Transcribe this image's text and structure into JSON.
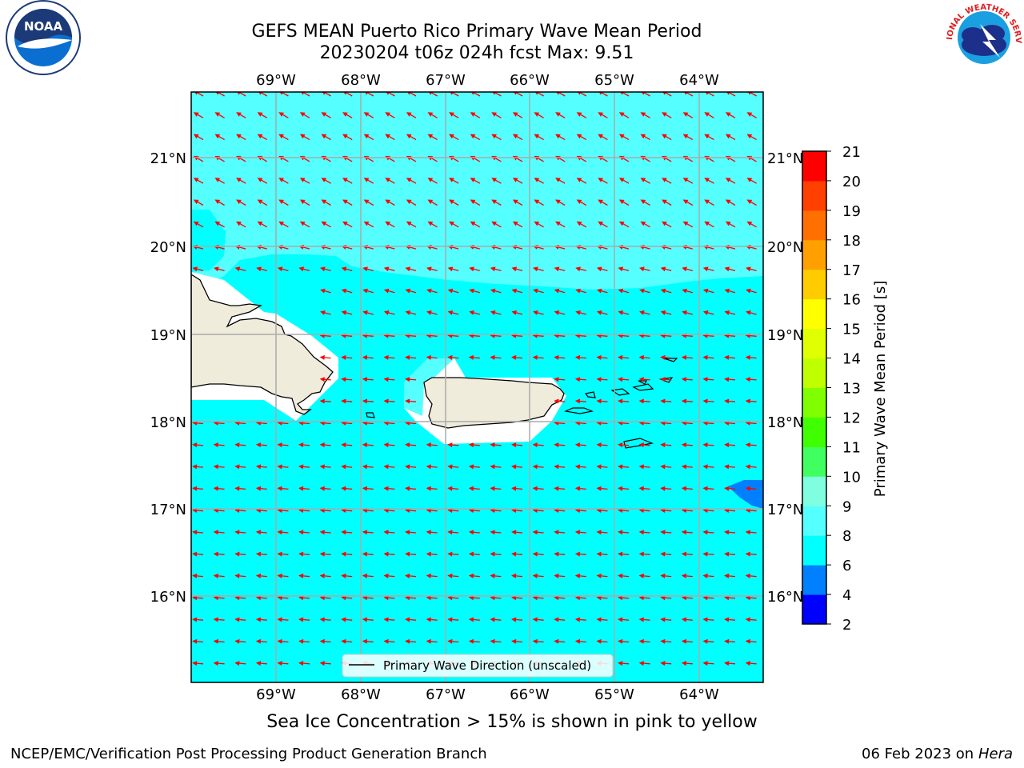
{
  "header": {
    "title_line1": "GEFS MEAN Puerto Rico Primary Wave Mean Period",
    "title_line2": "20230204 t06z 024h fcst   Max: 9.51"
  },
  "logos": {
    "left": {
      "name": "noaa-logo",
      "text": "NOAA",
      "ring_text": "NATIONAL OCEANIC AND ATMOSPHERIC ADMINISTRATION · U.S. DEPARTMENT OF COMMERCE"
    },
    "right": {
      "name": "nws-logo",
      "ring_text": "NATIONAL WEATHER SERVICE"
    }
  },
  "map": {
    "lon_labels": [
      "69°W",
      "68°W",
      "67°W",
      "66°W",
      "65°W",
      "64°W"
    ],
    "lat_labels": [
      "21°N",
      "20°N",
      "19°N",
      "18°N",
      "17°N",
      "16°N"
    ],
    "legend_label": "Primary Wave Direction (unscaled)",
    "arrow_color": "#ff0000",
    "background_fill": "#00ffff",
    "north_fill": "#55ffff",
    "land_fill": "#f0ecdc",
    "low_period_fill": "#0080ff"
  },
  "colorbar": {
    "label": "Primary Wave Mean Period [s]",
    "ticks": [
      "2",
      "4",
      "6",
      "8",
      "9",
      "10",
      "11",
      "12",
      "13",
      "14",
      "15",
      "16",
      "17",
      "18",
      "19",
      "20",
      "21"
    ],
    "colors": [
      "#0000ff",
      "#0080ff",
      "#00ffff",
      "#55ffff",
      "#80ffe0",
      "#40ff60",
      "#40ff00",
      "#80ff00",
      "#c0ff00",
      "#e0ff00",
      "#ffff00",
      "#ffcc00",
      "#ffa000",
      "#ff7000",
      "#ff4000",
      "#ff0000"
    ]
  },
  "subtitle": "Sea Ice Concentration > 15% is shown in pink to yellow",
  "footer": {
    "left": "NCEP/EMC/Verification Post Processing Product Generation Branch",
    "right_date": "06 Feb 2023 on",
    "right_host": "Hera"
  }
}
